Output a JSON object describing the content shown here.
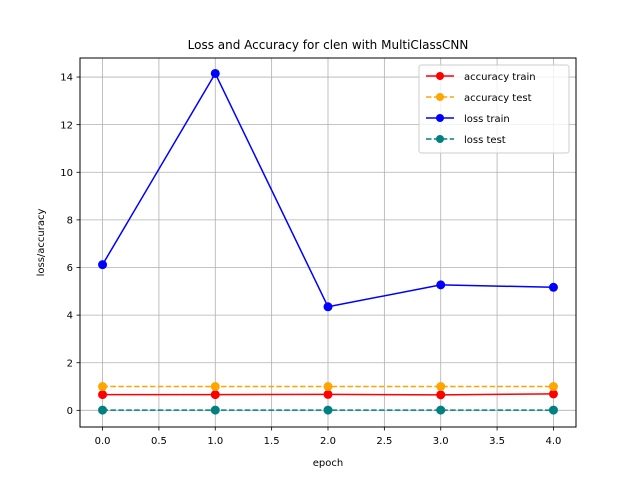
{
  "chart_data": {
    "type": "line",
    "title": "Loss and Accuracy for clen with MultiClassCNN",
    "xlabel": "epoch",
    "ylabel": "loss/accuracy",
    "xlim": [
      -0.2,
      4.2
    ],
    "ylim": [
      -0.7,
      14.8
    ],
    "xticks": [
      0.0,
      0.5,
      1.0,
      1.5,
      2.0,
      2.5,
      3.0,
      3.5,
      4.0
    ],
    "xtick_labels": [
      "0.0",
      "0.5",
      "1.0",
      "1.5",
      "2.0",
      "2.5",
      "3.0",
      "3.5",
      "4.0"
    ],
    "yticks": [
      0,
      2,
      4,
      6,
      8,
      10,
      12,
      14
    ],
    "ytick_labels": [
      "0",
      "2",
      "4",
      "6",
      "8",
      "10",
      "12",
      "14"
    ],
    "grid": true,
    "legend_position": "top-right",
    "x": [
      0,
      1,
      2,
      3,
      4
    ],
    "series": [
      {
        "name": "accuracy train",
        "values": [
          0.66,
          0.66,
          0.67,
          0.65,
          0.69
        ],
        "color": "#ff0000",
        "linestyle": "solid",
        "marker": "circle"
      },
      {
        "name": "accuracy test",
        "values": [
          1.0,
          1.0,
          1.0,
          1.0,
          1.0
        ],
        "color": "#ffa500",
        "linestyle": "dashed",
        "marker": "circle"
      },
      {
        "name": "loss train",
        "values": [
          6.12,
          14.15,
          4.35,
          5.27,
          5.17
        ],
        "color": "#0000ff",
        "linestyle": "solid",
        "marker": "circle"
      },
      {
        "name": "loss test",
        "values": [
          0.01,
          0.01,
          0.01,
          0.01,
          0.01
        ],
        "color": "#008080",
        "linestyle": "dashed",
        "marker": "circle"
      }
    ]
  }
}
